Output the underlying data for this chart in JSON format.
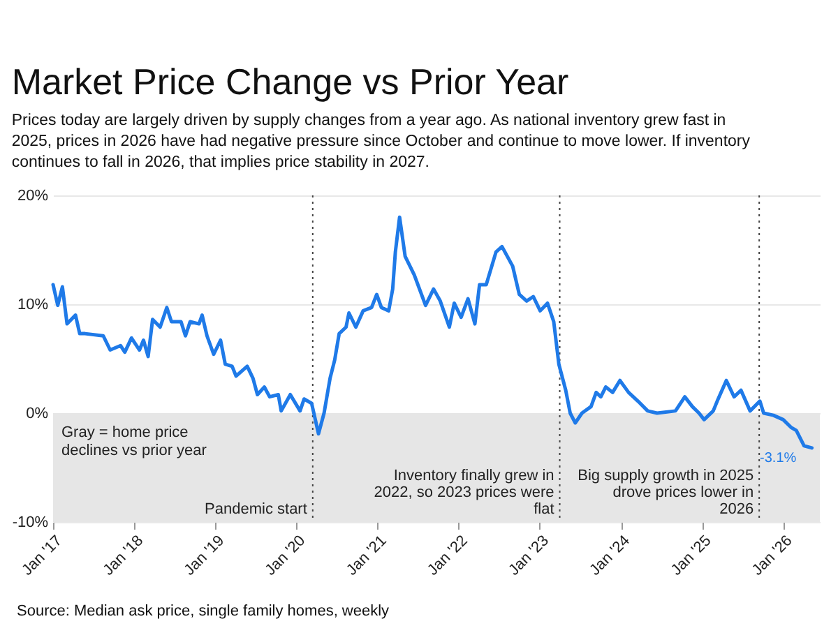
{
  "chart_data": {
    "type": "line",
    "title": "Market Price Change vs Prior Year",
    "subtitle": "Prices today are largely driven by supply changes from a year ago. As national inventory grew fast in 2025, prices in 2026 have had negative pressure since October and continue to move lower. If inventory continues to fall in 2026, that implies price stability in 2027.",
    "series": [
      {
        "type": "line",
        "color": "#1f7ae8",
        "line_style": "solid",
        "x": [
          "2017-01-01",
          "2017-01-22",
          "2017-02-12",
          "2017-03-05",
          "2017-04-12",
          "2017-05-01",
          "2017-05-25",
          "2017-08-15",
          "2017-09-15",
          "2017-11-01",
          "2017-11-20",
          "2017-12-20",
          "2018-01-25",
          "2018-02-12",
          "2018-03-05",
          "2018-03-25",
          "2018-04-28",
          "2018-05-28",
          "2018-06-18",
          "2018-07-31",
          "2018-08-20",
          "2018-09-10",
          "2018-10-20",
          "2018-11-03",
          "2018-11-25",
          "2018-12-25",
          "2019-01-25",
          "2019-02-15",
          "2019-03-18",
          "2019-04-05",
          "2019-05-25",
          "2019-06-20",
          "2019-07-10",
          "2019-08-10",
          "2019-09-03",
          "2019-10-12",
          "2019-10-25",
          "2019-12-05",
          "2020-01-18",
          "2020-02-05",
          "2020-03-10",
          "2020-04-10",
          "2020-05-05",
          "2020-06-01",
          "2020-06-22",
          "2020-07-12",
          "2020-08-12",
          "2020-08-25",
          "2020-09-25",
          "2020-10-28",
          "2020-12-05",
          "2020-12-28",
          "2021-01-18",
          "2021-02-20",
          "2021-03-10",
          "2021-03-22",
          "2021-04-10",
          "2021-05-05",
          "2021-06-15",
          "2021-08-05",
          "2021-09-10",
          "2021-10-10",
          "2021-11-20",
          "2021-12-12",
          "2022-01-12",
          "2022-02-12",
          "2022-03-15",
          "2022-04-05",
          "2022-05-05",
          "2022-06-18",
          "2022-07-15",
          "2022-09-01",
          "2022-10-01",
          "2022-11-03",
          "2022-12-03",
          "2023-01-03",
          "2023-02-05",
          "2023-03-05",
          "2023-03-28",
          "2023-04-28",
          "2023-05-18",
          "2023-06-10",
          "2023-07-10",
          "2023-08-20",
          "2023-09-12",
          "2023-10-03",
          "2023-10-25",
          "2023-11-25",
          "2023-12-28",
          "2024-02-05",
          "2024-03-18",
          "2024-05-01",
          "2024-06-12",
          "2024-09-03",
          "2024-10-15",
          "2024-11-18",
          "2024-12-18",
          "2025-01-10",
          "2025-02-20",
          "2025-03-10",
          "2025-04-20",
          "2025-05-25",
          "2025-06-25",
          "2025-08-05",
          "2025-09-18",
          "2025-10-05",
          "2025-11-18",
          "2026-01-01",
          "2026-02-05",
          "2026-03-01",
          "2026-04-05",
          "2026-05-10"
        ],
        "values": [
          11.8,
          9.9,
          11.6,
          8.2,
          9.0,
          7.3,
          7.3,
          7.1,
          5.8,
          6.2,
          5.6,
          6.9,
          5.8,
          6.7,
          5.2,
          8.6,
          7.9,
          9.7,
          8.4,
          8.4,
          7.1,
          8.4,
          8.2,
          9.0,
          7.1,
          5.4,
          6.7,
          4.5,
          4.3,
          3.4,
          4.3,
          3.2,
          1.7,
          2.4,
          1.5,
          1.7,
          0.2,
          1.7,
          0.2,
          1.3,
          0.9,
          -1.9,
          0.0,
          3.2,
          4.9,
          7.3,
          7.9,
          9.2,
          7.9,
          9.4,
          9.7,
          10.9,
          9.7,
          9.4,
          11.4,
          14.8,
          18.0,
          14.4,
          12.7,
          9.9,
          11.4,
          10.3,
          7.9,
          10.1,
          8.8,
          10.5,
          8.2,
          11.8,
          11.8,
          14.8,
          15.3,
          13.5,
          10.9,
          10.3,
          10.7,
          9.4,
          10.1,
          8.4,
          4.5,
          2.1,
          0.0,
          -0.9,
          0.0,
          0.6,
          1.9,
          1.5,
          2.4,
          1.9,
          3.0,
          1.9,
          1.1,
          0.2,
          0.0,
          0.2,
          1.5,
          0.6,
          0.0,
          -0.6,
          0.2,
          1.1,
          3.0,
          1.5,
          2.1,
          0.2,
          1.1,
          0.0,
          -0.2,
          -0.6,
          -1.3,
          -1.6,
          -3.0,
          -3.2
        ]
      }
    ],
    "xlim": [
      "2017-01-01",
      "2026-06-15"
    ],
    "xticks": [
      {
        "value": "2017-01-01",
        "label": "Jan '17"
      },
      {
        "value": "2018-01-01",
        "label": "Jan '18"
      },
      {
        "value": "2019-01-01",
        "label": "Jan '19"
      },
      {
        "value": "2020-01-01",
        "label": "Jan '20"
      },
      {
        "value": "2021-01-01",
        "label": "Jan '21"
      },
      {
        "value": "2022-01-01",
        "label": "Jan '22"
      },
      {
        "value": "2023-01-01",
        "label": "Jan '23"
      },
      {
        "value": "2024-01-01",
        "label": "Jan '24"
      },
      {
        "value": "2025-01-01",
        "label": "Jan '25"
      },
      {
        "value": "2026-01-01",
        "label": "Jan '26"
      }
    ],
    "ylim": [
      -10,
      20
    ],
    "yticks": [
      {
        "value": -10,
        "label": "-10%"
      },
      {
        "value": 0,
        "label": "0%"
      },
      {
        "value": 10,
        "label": "10%"
      },
      {
        "value": 20,
        "label": "20%"
      }
    ],
    "grid": "y",
    "bands": [
      {
        "axis": "y",
        "from": -10,
        "to": 0,
        "label": "Gray = home price declines vs prior year",
        "color": "#e6e6e6"
      }
    ],
    "ref_lines": [
      {
        "axis": "x",
        "value": "2020-03-15",
        "label": "Pandemic start",
        "color": "#444444",
        "line_style": "dotted"
      },
      {
        "axis": "x",
        "value": "2023-04-01",
        "label": "Inventory finally grew in 2022, so 2023 prices were flat",
        "color": "#444444",
        "line_style": "dotted"
      },
      {
        "axis": "x",
        "value": "2025-09-15",
        "label": "Big supply growth in 2025 drove prices lower in 2026",
        "color": "#444444",
        "line_style": "dotted"
      }
    ],
    "annotations": [
      {
        "text": "-3.1%",
        "x": "2026-03-20",
        "y": -3.1
      },
      "Source: Median ask price, single family homes, weekly"
    ]
  }
}
